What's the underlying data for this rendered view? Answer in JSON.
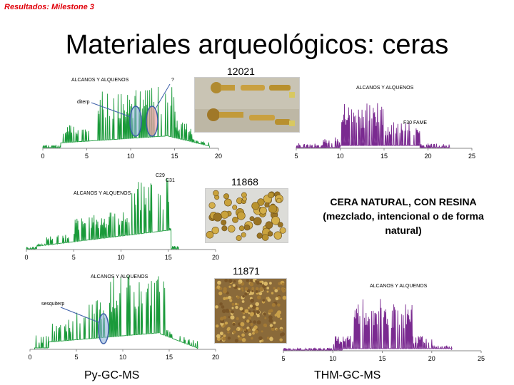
{
  "header": {
    "milestone": "Resultados: Milestone 3",
    "title": "Materiales arqueológicos: ceras"
  },
  "samples": {
    "s1": "12021",
    "s2": "11868",
    "s3": "11871"
  },
  "note": {
    "line1": "CERA NATURAL, CON RESINA",
    "line2": "(mezclado, intencional o de forma",
    "line3": "natural)"
  },
  "methods": {
    "left": "Py-GC-MS",
    "right": "THM-GC-MS"
  },
  "colors": {
    "green": "#1a9a3a",
    "purple": "#7a2a90",
    "red": "#e0000a",
    "ellipse_blue": "#3b5ea8",
    "ellipse_fill": "#8fb2d8",
    "ellipse_pink": "#e49aa0"
  },
  "chart_data": [
    {
      "type": "line",
      "id": "py-12021",
      "x_ticks": [
        "0",
        "5",
        "10",
        "15",
        "20"
      ],
      "xlim": [
        0,
        20
      ],
      "annotations": [
        "ALCANOS Y ALQUENOS",
        "?",
        "diterp"
      ]
    },
    {
      "type": "line",
      "id": "thm-12021",
      "x_ticks": [
        "5",
        "10",
        "15",
        "20",
        "25"
      ],
      "xlim": [
        5,
        25
      ],
      "annotations": [
        "ALCANOS Y ALQUENOS",
        "F30 FAME"
      ]
    },
    {
      "type": "line",
      "id": "py-11868",
      "x_ticks": [
        "0",
        "5",
        "10",
        "15",
        "20"
      ],
      "xlim": [
        0,
        20
      ],
      "annotations": [
        "ALCANOS Y ALQUENOS",
        "C29",
        "C31"
      ]
    },
    {
      "type": "line",
      "id": "py-11871",
      "x_ticks": [
        "0",
        "5",
        "10",
        "15",
        "20"
      ],
      "xlim": [
        0,
        20
      ],
      "annotations": [
        "ALCANOS Y ALQUENOS",
        "sesquiterp"
      ]
    },
    {
      "type": "line",
      "id": "thm-11871",
      "x_ticks": [
        "5",
        "10",
        "15",
        "20",
        "25"
      ],
      "xlim": [
        5,
        25
      ],
      "annotations": [
        "ALCANOS Y ALQUENOS"
      ]
    }
  ]
}
